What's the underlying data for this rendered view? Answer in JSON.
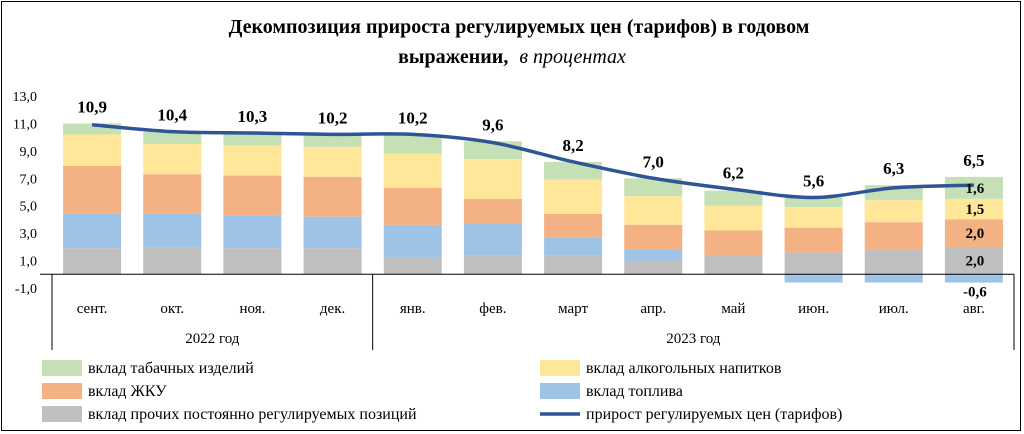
{
  "chart_data": {
    "type": "bar",
    "stacked": true,
    "title": "Декомпозиция прироста регулируемых цен (тарифов) в годовом",
    "title_line2": "выражении,",
    "title_unit": "в процентах",
    "categories": [
      "сент.",
      "окт.",
      "ноя.",
      "дек.",
      "янв.",
      "фев.",
      "март",
      "апр.",
      "май",
      "июн.",
      "июл.",
      "авг."
    ],
    "groups": [
      {
        "label": "2022 год",
        "from": 0,
        "to": 3
      },
      {
        "label": "2023 год",
        "from": 4,
        "to": 11
      }
    ],
    "yticks": [
      "13,0",
      "11,0",
      "9,0",
      "7,0",
      "5,0",
      "3,0",
      "1,0",
      "-1,0"
    ],
    "ylim": [
      -1,
      13
    ],
    "series": [
      {
        "name": "вклад прочих постоянно регулируемых позиций",
        "color": "#bfbfbf",
        "values": [
          1.9,
          2.0,
          1.9,
          1.9,
          1.2,
          1.4,
          1.4,
          1.0,
          1.4,
          1.6,
          1.8,
          2.0
        ]
      },
      {
        "name": "вклад топлива",
        "color": "#9dc3e6",
        "values": [
          2.5,
          2.4,
          2.4,
          2.3,
          2.4,
          2.3,
          1.3,
          0.8,
          0.0,
          -0.6,
          -0.6,
          -0.6
        ]
      },
      {
        "name": "вклад ЖКУ",
        "color": "#f4b183",
        "values": [
          3.5,
          2.9,
          2.9,
          2.9,
          2.7,
          1.8,
          1.7,
          1.8,
          1.8,
          1.8,
          2.0,
          2.0
        ]
      },
      {
        "name": "вклад алкогольных напитков",
        "color": "#ffe699",
        "values": [
          2.3,
          2.2,
          2.2,
          2.2,
          2.5,
          2.9,
          2.5,
          2.1,
          1.8,
          1.5,
          1.6,
          1.5
        ]
      },
      {
        "name": "вклад табачных изделий",
        "color": "#c5e0b4",
        "values": [
          0.8,
          0.9,
          0.9,
          0.9,
          1.4,
          1.3,
          1.3,
          1.3,
          1.1,
          0.7,
          1.1,
          1.6
        ]
      }
    ],
    "line": {
      "name": "прирост регулируемых цен (тарифов)",
      "color": "#2f5597",
      "values": [
        10.9,
        10.4,
        10.3,
        10.2,
        10.2,
        9.6,
        8.2,
        7.0,
        6.2,
        5.6,
        6.3,
        6.5
      ],
      "labels": [
        "10,9",
        "10,4",
        "10,3",
        "10,2",
        "10,2",
        "9,6",
        "8,2",
        "7,0",
        "6,2",
        "5,6",
        "6,3",
        "6,5"
      ]
    },
    "segment_labels": [
      {
        "category": 11,
        "series": 0,
        "text": "2,0"
      },
      {
        "category": 11,
        "series": 2,
        "text": "2,0"
      },
      {
        "category": 11,
        "series": 3,
        "text": "1,5"
      },
      {
        "category": 11,
        "series": 4,
        "text": "1,6"
      },
      {
        "category": 11,
        "series": 1,
        "text": "-0,6"
      }
    ],
    "legend": {
      "position": "bottom",
      "items": [
        {
          "text": "вклад табачных изделий",
          "kind": "box",
          "color": "#c5e0b4"
        },
        {
          "text": "вклад алкогольных напитков",
          "kind": "box",
          "color": "#ffe699"
        },
        {
          "text": "вклад ЖКУ",
          "kind": "box",
          "color": "#f4b183"
        },
        {
          "text": "вклад топлива",
          "kind": "box",
          "color": "#9dc3e6"
        },
        {
          "text": "вклад прочих постоянно регулируемых  позиций",
          "kind": "box",
          "color": "#bfbfbf"
        },
        {
          "text": "прирост регулируемых  цен (тарифов)",
          "kind": "line",
          "color": "#2f5597"
        }
      ]
    }
  }
}
